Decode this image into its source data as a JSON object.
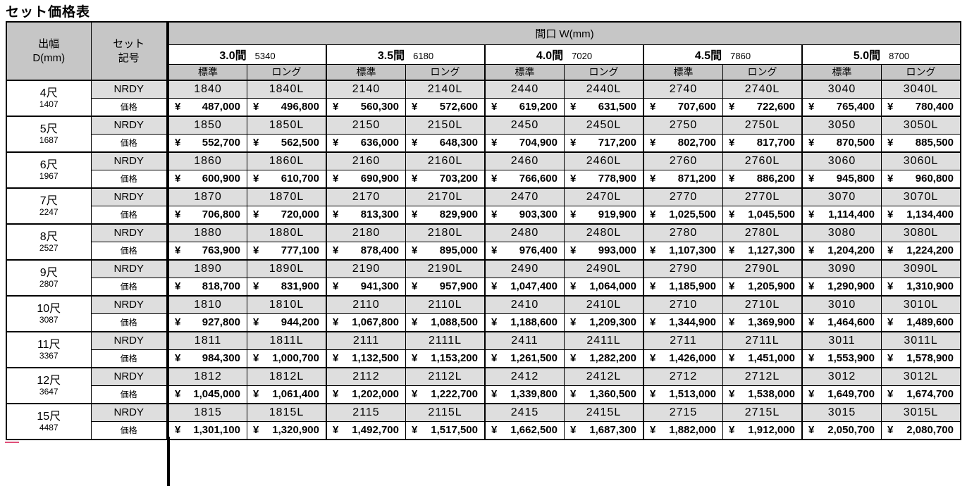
{
  "page": {
    "title": "セット価格表"
  },
  "table": {
    "corner_depth_line1": "出幅",
    "corner_depth_line2": "D(mm)",
    "corner_set_line1": "セット",
    "corner_set_line2": "記号",
    "span_header": "間口 W(mm)",
    "col_groups": [
      {
        "name": "3.0間",
        "mm": "5340"
      },
      {
        "name": "3.5間",
        "mm": "6180"
      },
      {
        "name": "4.0間",
        "mm": "7020"
      },
      {
        "name": "4.5間",
        "mm": "7860"
      },
      {
        "name": "5.0間",
        "mm": "8700"
      }
    ],
    "sub_cols": [
      "標準",
      "ロング"
    ],
    "model_row_label": "NRDY",
    "price_row_label": "価格",
    "currency": "¥",
    "rows": [
      {
        "size": "4尺",
        "mm": "1407",
        "models": [
          "1840",
          "1840L",
          "2140",
          "2140L",
          "2440",
          "2440L",
          "2740",
          "2740L",
          "3040",
          "3040L"
        ],
        "prices": [
          "487,000",
          "496,800",
          "560,300",
          "572,600",
          "619,200",
          "631,500",
          "707,600",
          "722,600",
          "765,400",
          "780,400"
        ]
      },
      {
        "size": "5尺",
        "mm": "1687",
        "models": [
          "1850",
          "1850L",
          "2150",
          "2150L",
          "2450",
          "2450L",
          "2750",
          "2750L",
          "3050",
          "3050L"
        ],
        "prices": [
          "552,700",
          "562,500",
          "636,000",
          "648,300",
          "704,900",
          "717,200",
          "802,700",
          "817,700",
          "870,500",
          "885,500"
        ]
      },
      {
        "size": "6尺",
        "mm": "1967",
        "models": [
          "1860",
          "1860L",
          "2160",
          "2160L",
          "2460",
          "2460L",
          "2760",
          "2760L",
          "3060",
          "3060L"
        ],
        "prices": [
          "600,900",
          "610,700",
          "690,900",
          "703,200",
          "766,600",
          "778,900",
          "871,200",
          "886,200",
          "945,800",
          "960,800"
        ]
      },
      {
        "size": "7尺",
        "mm": "2247",
        "models": [
          "1870",
          "1870L",
          "2170",
          "2170L",
          "2470",
          "2470L",
          "2770",
          "2770L",
          "3070",
          "3070L"
        ],
        "prices": [
          "706,800",
          "720,000",
          "813,300",
          "829,900",
          "903,300",
          "919,900",
          "1,025,500",
          "1,045,500",
          "1,114,400",
          "1,134,400"
        ]
      },
      {
        "size": "8尺",
        "mm": "2527",
        "models": [
          "1880",
          "1880L",
          "2180",
          "2180L",
          "2480",
          "2480L",
          "2780",
          "2780L",
          "3080",
          "3080L"
        ],
        "prices": [
          "763,900",
          "777,100",
          "878,400",
          "895,000",
          "976,400",
          "993,000",
          "1,107,300",
          "1,127,300",
          "1,204,200",
          "1,224,200"
        ]
      },
      {
        "size": "9尺",
        "mm": "2807",
        "models": [
          "1890",
          "1890L",
          "2190",
          "2190L",
          "2490",
          "2490L",
          "2790",
          "2790L",
          "3090",
          "3090L"
        ],
        "prices": [
          "818,700",
          "831,900",
          "941,300",
          "957,900",
          "1,047,400",
          "1,064,000",
          "1,185,900",
          "1,205,900",
          "1,290,900",
          "1,310,900"
        ]
      },
      {
        "size": "10尺",
        "mm": "3087",
        "models": [
          "1810",
          "1810L",
          "2110",
          "2110L",
          "2410",
          "2410L",
          "2710",
          "2710L",
          "3010",
          "3010L"
        ],
        "prices": [
          "927,800",
          "944,200",
          "1,067,800",
          "1,088,500",
          "1,188,600",
          "1,209,300",
          "1,344,900",
          "1,369,900",
          "1,464,600",
          "1,489,600"
        ]
      },
      {
        "size": "11尺",
        "mm": "3367",
        "models": [
          "1811",
          "1811L",
          "2111",
          "2111L",
          "2411",
          "2411L",
          "2711",
          "2711L",
          "3011",
          "3011L"
        ],
        "prices": [
          "984,300",
          "1,000,700",
          "1,132,500",
          "1,153,200",
          "1,261,500",
          "1,282,200",
          "1,426,000",
          "1,451,000",
          "1,553,900",
          "1,578,900"
        ]
      },
      {
        "size": "12尺",
        "mm": "3647",
        "models": [
          "1812",
          "1812L",
          "2112",
          "2112L",
          "2412",
          "2412L",
          "2712",
          "2712L",
          "3012",
          "3012L"
        ],
        "prices": [
          "1,045,000",
          "1,061,400",
          "1,202,000",
          "1,222,700",
          "1,339,800",
          "1,360,500",
          "1,513,000",
          "1,538,000",
          "1,649,700",
          "1,674,700"
        ]
      },
      {
        "size": "15尺",
        "mm": "4487",
        "models": [
          "1815",
          "1815L",
          "2115",
          "2115L",
          "2415",
          "2415L",
          "2715",
          "2715L",
          "3015",
          "3015L"
        ],
        "prices": [
          "1,301,100",
          "1,320,900",
          "1,492,700",
          "1,517,500",
          "1,662,500",
          "1,687,300",
          "1,882,000",
          "1,912,000",
          "2,050,700",
          "2,080,700"
        ]
      }
    ]
  }
}
